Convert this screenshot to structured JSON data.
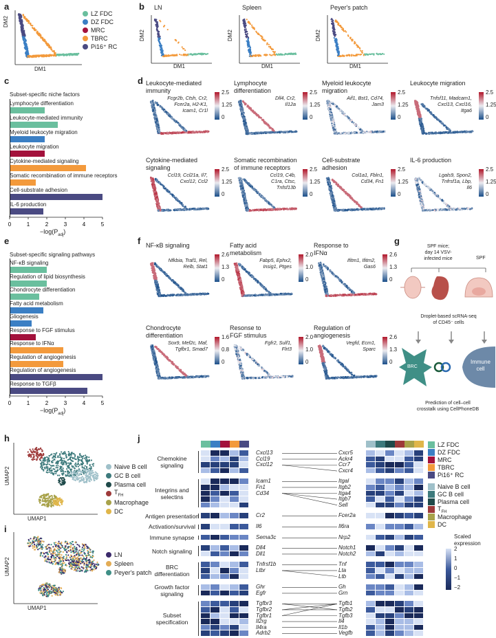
{
  "panels": {
    "a": "a",
    "b": "b",
    "c": "c",
    "d": "d",
    "e": "e",
    "f": "f",
    "g": "g",
    "h": "h",
    "i": "i",
    "j": "j"
  },
  "legend_a": [
    {
      "name": "LZ FDC",
      "color": "#6abf9e"
    },
    {
      "name": "DZ FDC",
      "color": "#3b7fc4"
    },
    {
      "name": "MRC",
      "color": "#a3123c"
    },
    {
      "name": "TBRC",
      "color": "#f39a3c"
    },
    {
      "name": "Pi16⁺ RC",
      "color": "#4a4a82"
    }
  ],
  "axes": {
    "dm1": "DM1",
    "dm2": "DM2",
    "umap1": "UMAP1",
    "umap2": "UMAP2"
  },
  "b_titles": [
    "LN",
    "Spleen",
    "Peyer's patch"
  ],
  "c_title": "Subset-specific niche factors",
  "c_bars": [
    {
      "label": "Lymphocyte differentiation",
      "value": 1.9,
      "color": "#6abf9e"
    },
    {
      "label": "Leukocyte-mediated immunity",
      "value": 2.6,
      "color": "#6abf9e"
    },
    {
      "label": "Myeloid leukocyte migration",
      "value": 1.9,
      "color": "#3b7fc4"
    },
    {
      "label": "Leukocyte migration",
      "value": 1.9,
      "color": "#a3123c"
    },
    {
      "label": "Cytokine-mediated signaling",
      "value": 4.1,
      "color": "#f39a3c"
    },
    {
      "label": "Somatic recombination of immune receptors",
      "value": 1.4,
      "color": "#f39a3c"
    },
    {
      "label": "Cell-substrate adhesion",
      "value": 5.0,
      "color": "#4a4a82"
    },
    {
      "label": "IL-6 production",
      "value": 1.8,
      "color": "#4a4a82"
    }
  ],
  "c_ticks": [
    "0",
    "1",
    "2",
    "3",
    "4",
    "5"
  ],
  "xlabel_padj": "−log(P",
  "xlabel_sub": "adj",
  "e_title": "Subset-specific signaling pathways",
  "e_bars": [
    {
      "label": "NF-κB signaling",
      "value": 2.0,
      "color": "#6abf9e"
    },
    {
      "label": "Regulation of lipid biosynthesis",
      "value": 2.0,
      "color": "#6abf9e"
    },
    {
      "label": "Chondrocyte differentiation",
      "value": 1.6,
      "color": "#6abf9e"
    },
    {
      "label": "Fatty acid metabolism",
      "value": 1.8,
      "color": "#3b7fc4"
    },
    {
      "label": "Gliogenesis",
      "value": 1.2,
      "color": "#3b7fc4"
    },
    {
      "label": "Response to FGF stimulus",
      "value": 1.4,
      "color": "#a3123c"
    },
    {
      "label": "Response to IFNα",
      "value": 2.9,
      "color": "#f39a3c"
    },
    {
      "label": "Regulation of angiogenesis",
      "value": 2.9,
      "color": "#f39a3c"
    },
    {
      "label": "Regulation of angiogenesis",
      "value": 5.0,
      "color": "#4a4a82"
    },
    {
      "label": "Response to TGFβ",
      "value": 4.2,
      "color": "#4a4a82"
    }
  ],
  "d_plots": [
    {
      "title": "Leukocyte-mediated\nimmunity",
      "genes": "Fcgr2b, Ctsh, Cr2,\nFcer2a, H2-K1,\nIcam1, Cr1l",
      "ticks": [
        "2.5",
        "1.25",
        "0"
      ]
    },
    {
      "title": "Lymphocyte\ndifferentiation",
      "genes": "Dll4, Cr2,\nIl12a",
      "ticks": [
        "2.5",
        "1.25",
        "0"
      ]
    },
    {
      "title": "Myeloid leukocyte\nmigration",
      "genes": "Aif1, Bst1, Cd74,\nJam3",
      "ticks": [
        "2.5",
        "1.25",
        "0"
      ]
    },
    {
      "title": "Leukocyte migration",
      "genes": "Tnfsf11, Madcam1,\nCxcl13, Cxcl16,\nItga6",
      "ticks": [
        "2.5",
        "1.25",
        "0"
      ]
    },
    {
      "title": "Cytokine-mediated\nsignaling",
      "genes": "Ccl19, Ccl21a, Il7,\nCxcl12, Ccl2",
      "ticks": [
        "2.5",
        "1.25",
        "0"
      ]
    },
    {
      "title": "Somatic recombination\nof immune receptors",
      "genes": "Ccl19, C4b,\nC1ra, Ctsc,\nTnfsf13b",
      "ticks": [
        "2.5",
        "1.25",
        "0"
      ]
    },
    {
      "title": "Cell-substrate\nadhesion",
      "genes": "Col1a1, Fbln1,\nCd34, Fn1",
      "ticks": [
        "2.5",
        "1.25",
        "0"
      ]
    },
    {
      "title": "IL-6 production",
      "genes": "Lgals9, Spon2,\nTnfrsf1a, Lbp,\nIl6",
      "ticks": [
        "2.5",
        "1.25",
        "0"
      ]
    }
  ],
  "f_plots": [
    {
      "title": "NF-κB signaling",
      "genes": "Nfkbia, Traf1, Rel,\nRelb, Stat1",
      "ticks": [
        "2.6",
        "1.3",
        "0"
      ]
    },
    {
      "title": "Fatty acid\nmetabolism",
      "genes": "Fabp5, Ephx2,\nInsig1, Ptges",
      "ticks": [
        "2.0",
        "1.0",
        "0"
      ]
    },
    {
      "title": "Response to\nIFNα",
      "genes": "Ifitm1, Ifitm2,\nGas6",
      "ticks": [
        "2.6",
        "1.3",
        "0"
      ]
    },
    {
      "title": "Chondrocyte\ndifferentiation",
      "genes": "Sox9, Mef2c, Maf,\nTgfbr1, Smad7",
      "ticks": [
        "1.6",
        "0.8",
        "0"
      ]
    },
    {
      "title": "Resonse to\nFGF stimulus",
      "genes": "Fgfr2, Sulf1,\nFlrt3",
      "ticks": [
        "2.0",
        "1.0",
        "0"
      ]
    },
    {
      "title": "Regulation of\nangiogenesis",
      "genes": "Vegfd, Ecm1,\nSparc",
      "ticks": [
        "2.6",
        "1.3",
        "0"
      ]
    }
  ],
  "g": {
    "top1": "SPF mice;",
    "top2": "day 14 VSV-",
    "top3": "infected mice",
    "spf": "SPF",
    "mid1": "Droplet-based scRNA-seq",
    "mid2": "of CD45⁻ cells",
    "brc": "BRC",
    "immune1": "Immune",
    "immune2": "cell",
    "bot1": "Prediction of cell–cell",
    "bot2": "crosstalk using CellPhoneDB"
  },
  "legend_h": [
    {
      "name": "Naive B cell",
      "color": "#9fc0c9"
    },
    {
      "name": "GC B cell",
      "color": "#3d7a7c"
    },
    {
      "name": "Plasma cell",
      "color": "#1f4a4a"
    },
    {
      "name": "T",
      "sub": "FH",
      "color": "#9e3a3a"
    },
    {
      "name": "Macrophage",
      "color": "#a8a24a"
    },
    {
      "name": "DC",
      "color": "#e0b64a"
    }
  ],
  "legend_i": [
    {
      "name": "LN",
      "color": "#3b2a6b"
    },
    {
      "name": "Spleen",
      "color": "#e3ac55"
    },
    {
      "name": "Peyer's patch",
      "color": "#3f8f86"
    }
  ],
  "j": {
    "groups": [
      {
        "label": "Chemokine\nsignaling",
        "left": [
          "Cxcl13",
          "Ccl19",
          "Cxcl12"
        ],
        "right": [
          "Cxcr5",
          "Ackr4",
          "Ccr7",
          "Cxcr4"
        ]
      },
      {
        "label": "Integrins and\nselectins",
        "left": [
          "Icam1",
          "Fn1",
          "Cd34"
        ],
        "right": [
          "Itgal",
          "Itgb2",
          "Itga4",
          "Itgb7",
          "Sell"
        ]
      },
      {
        "label": "Antigen presentation",
        "left": [
          "Cr2"
        ],
        "right": [
          "Fcer2a"
        ]
      },
      {
        "label": "Activation/survival",
        "left": [
          "Il6"
        ],
        "right": [
          "Il6ra"
        ]
      },
      {
        "label": "Immune synapse",
        "left": [
          "Sema3c"
        ],
        "right": [
          "Nrp2"
        ]
      },
      {
        "label": "Notch signaling",
        "left": [
          "Dll4",
          "Dll1"
        ],
        "right": [
          "Notch1",
          "Notch2"
        ]
      },
      {
        "label": "BRC\ndifferentiation",
        "left": [
          "Tnfrsf1b",
          "Ltbr"
        ],
        "right": [
          "Tnf",
          "Lta",
          "Ltb"
        ]
      },
      {
        "label": "Growth factor\nsignaling",
        "left": [
          "Ghr",
          "Egfr"
        ],
        "right": [
          "Gh",
          "Grn"
        ]
      },
      {
        "label": "Subset\nspecification",
        "left": [
          "Tgfbr3",
          "Tgfbr2",
          "Tgfbr1",
          "Il2rg",
          "Il4ra",
          "Adrb2"
        ],
        "right": [
          "Tgfb1",
          "Tgfb2",
          "Tgfb3",
          "Il4",
          "Il1b",
          "Vegfb"
        ]
      }
    ],
    "legend_stromal": [
      {
        "name": "LZ FDC",
        "color": "#6abf9e"
      },
      {
        "name": "DZ FDC",
        "color": "#3b7fc4"
      },
      {
        "name": "MRC",
        "color": "#a3123c"
      },
      {
        "name": "TBRC",
        "color": "#f39a3c"
      },
      {
        "name": "Pi16⁺ RC",
        "color": "#4a4a82"
      }
    ],
    "legend_immune": [
      {
        "name": "Naive B cell",
        "color": "#9fc0c9"
      },
      {
        "name": "GC B cell",
        "color": "#3d7a7c"
      },
      {
        "name": "Plasma cell",
        "color": "#1f4a4a"
      },
      {
        "name": "T",
        "sub": "FH",
        "color": "#9e3a3a"
      },
      {
        "name": "Macrophage",
        "color": "#a8a24a"
      },
      {
        "name": "DC",
        "color": "#e0b64a"
      }
    ],
    "scale_title1": "Scaled",
    "scale_title2": "expression",
    "scale_ticks": [
      "2",
      "1",
      "0",
      "−1",
      "−2"
    ]
  }
}
